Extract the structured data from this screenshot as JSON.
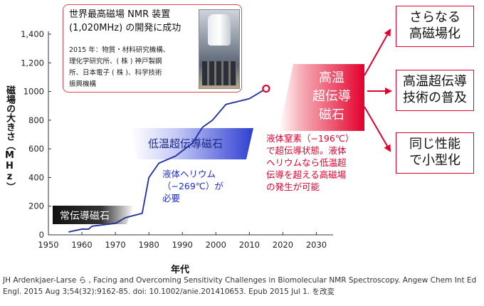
{
  "chart_data": {
    "type": "line",
    "title": "",
    "xlabel": "年代",
    "ylabel": "磁場の大きさ（MHz）",
    "xlim": [
      1950,
      2035
    ],
    "ylim": [
      0,
      1400
    ],
    "x_ticks": [
      "1950",
      "1960",
      "1970",
      "1980",
      "1990",
      "2000",
      "2010",
      "2020",
      "2030"
    ],
    "y_ticks": [
      "0",
      "200",
      "400",
      "600",
      "800",
      "1000",
      "1,200",
      "1,400"
    ],
    "series": [
      {
        "x": [
          1956,
          1960,
          1962,
          1963,
          1970,
          1973,
          1978,
          1980,
          1983,
          1988,
          1993,
          1996,
          1999,
          2003,
          2010,
          2015
        ],
        "y": [
          20,
          40,
          40,
          60,
          80,
          120,
          150,
          400,
          500,
          550,
          640,
          750,
          800,
          910,
          950,
          1020
        ]
      }
    ],
    "highlight_point": {
      "x": 2015,
      "y": 1020
    }
  },
  "callout": {
    "title": "世界最高磁場 NMR 装置\n(1,020MHz) の開発に成功",
    "detail": "2015 年：物質・材料研究機構、\n理化学研究所、( 株 ) 神戸製鋼\n所、日本電子 ( 株 )、科学技術\n振興機構"
  },
  "bands": {
    "normal": "常伝導磁石",
    "low_temp": "低温超伝導磁石",
    "high_temp": "高温\n超伝導\n磁石"
  },
  "notes": {
    "helium": "液体ヘリウム\n（−269℃）が\n必要",
    "nitrogen": "液体窒素（−196℃）\nで超伝導状態。液体\nヘリウムなら低温超\n伝導を超える高磁場\nの発生が可能"
  },
  "outcomes": [
    "さらなる\n高磁場化",
    "高温超伝導\n技術の普及",
    "同じ性能\nで小型化"
  ],
  "colors": {
    "accent_red": "#e3002c",
    "accent_blue": "#2f3fd1",
    "dark_band": "#222222"
  },
  "citation": "JH Ardenkjaer-Larse ら , Facing and Overcoming Sensitivity Challenges in Biomolecular NMR Spectroscopy. Angew Chem Int Ed\nEngl. 2015 Aug 3;54(32):9162-85. doi: 10.1002/anie.201410653. Epub 2015 Jul 1. を改変"
}
